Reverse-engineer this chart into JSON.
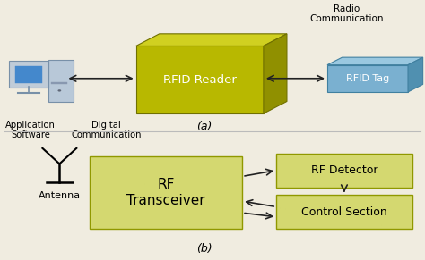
{
  "bg_color": "#f0ece0",
  "rfid_reader_front": "#b8b800",
  "rfid_reader_top": "#d0d020",
  "rfid_reader_right": "#909000",
  "rfid_tag_front": "#7ab0d0",
  "rfid_tag_top": "#9ac8e0",
  "rfid_tag_right": "#5090b0",
  "block_yellow_fill": "#d4d870",
  "block_yellow_edge": "#909800",
  "arrow_color": "#222222",
  "text_color": "#000000",
  "divider_color": "#bbbbbb",
  "label_a": "(a)",
  "label_b": "(b)",
  "rfid_reader_label": "RFID Reader",
  "rfid_tag_label": "RFID Tag",
  "radio_comm_label": "Radio\nCommunication",
  "digital_comm_label": "Digital\nCommunication",
  "app_software_label": "Application\nSoftware",
  "antenna_label": "Antenna",
  "rf_transceiver_label": "RF\nTransceiver",
  "rf_detector_label": "RF Detector",
  "control_section_label": "Control Section"
}
